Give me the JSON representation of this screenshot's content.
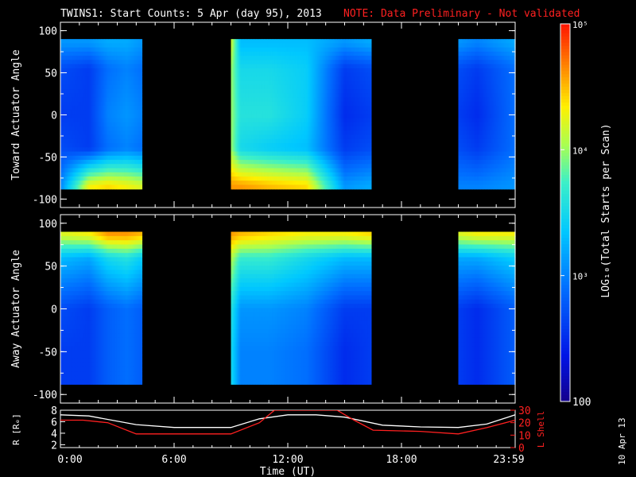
{
  "header": {
    "title": "TWINS1: Start Counts:  5 Apr (day  95), 2013",
    "note": "NOTE: Data Preliminary - Not validated"
  },
  "footer": {
    "date_stamp": "10 Apr 13"
  },
  "colors": {
    "background": "#000000",
    "axis": "#ffffff",
    "note": "#ff2020",
    "r_line": "#ffffff",
    "l_line": "#ff2020"
  },
  "chart_data": [
    {
      "type": "heatmap",
      "name": "toward",
      "ylabel": "Toward Actuator Angle",
      "xlim": [
        0,
        24
      ],
      "ylim": [
        -110,
        110
      ],
      "yticks": [
        100,
        50,
        0,
        -50,
        -100
      ],
      "data_ylim": [
        -88,
        90
      ],
      "coverage_hours": [
        [
          0,
          4.3
        ],
        [
          9.0,
          16.4
        ],
        [
          21.0,
          24
        ]
      ],
      "band_values_log10": {
        "hours": [
          0,
          1.5,
          2.5,
          3.5,
          4.3,
          9.0,
          9.5,
          11,
          13,
          15,
          16.4,
          21.0,
          22,
          24
        ],
        "north": [
          3.1,
          3.1,
          3.2,
          3.2,
          3.1,
          4.2,
          3.3,
          3.3,
          3.3,
          3.1,
          3.2,
          3.1,
          3.0,
          3.2
        ],
        "mid_north": [
          2.7,
          2.6,
          2.9,
          3.0,
          2.9,
          4.0,
          3.5,
          3.5,
          3.4,
          2.6,
          2.7,
          2.7,
          2.6,
          2.9
        ],
        "equator": [
          2.6,
          2.6,
          3.0,
          3.1,
          3.0,
          4.0,
          3.6,
          3.6,
          3.4,
          2.5,
          2.6,
          2.6,
          2.5,
          2.9
        ],
        "mid_south": [
          2.7,
          2.6,
          2.9,
          3.0,
          2.9,
          4.0,
          3.5,
          3.4,
          3.3,
          2.6,
          2.7,
          2.7,
          2.6,
          2.9
        ],
        "south_edge": [
          3.0,
          4.3,
          4.4,
          4.3,
          4.2,
          4.6,
          4.6,
          4.5,
          4.4,
          3.1,
          3.2,
          3.0,
          3.0,
          3.1
        ]
      }
    },
    {
      "type": "heatmap",
      "name": "away",
      "ylabel": "Away Actuator Angle",
      "xlim": [
        0,
        24
      ],
      "ylim": [
        -110,
        110
      ],
      "yticks": [
        100,
        50,
        0,
        -50,
        -100
      ],
      "data_ylim": [
        -88,
        90
      ],
      "coverage_hours": [
        [
          0,
          4.3
        ],
        [
          9.0,
          16.4
        ],
        [
          21.0,
          24
        ]
      ],
      "band_values_log10": {
        "hours": [
          0,
          1.5,
          2.5,
          3.5,
          4.3,
          9.0,
          9.5,
          11,
          13,
          15,
          16.4,
          21.0,
          22,
          24
        ],
        "north_edge": [
          4.2,
          4.3,
          4.6,
          4.6,
          4.5,
          4.6,
          4.5,
          4.4,
          4.3,
          4.3,
          4.4,
          4.2,
          4.3,
          4.3
        ],
        "north": [
          3.3,
          3.2,
          3.5,
          3.6,
          3.4,
          4.1,
          3.7,
          3.7,
          3.5,
          3.3,
          3.3,
          3.2,
          3.2,
          3.4
        ],
        "equator": [
          2.7,
          2.6,
          2.8,
          2.9,
          2.8,
          3.6,
          3.1,
          3.1,
          3.0,
          2.6,
          2.6,
          2.6,
          2.5,
          2.8
        ],
        "south": [
          2.6,
          2.6,
          2.8,
          2.9,
          2.8,
          3.5,
          3.0,
          3.0,
          2.9,
          2.5,
          2.6,
          2.6,
          2.5,
          2.8
        ]
      }
    },
    {
      "type": "line",
      "name": "orbit",
      "ylabel": "R [Rₑ]",
      "y2label": "L Shell",
      "xlabel": "Time (UT)",
      "xlim": [
        0,
        24
      ],
      "xticks": [
        "0:00",
        "6:00",
        "12:00",
        "18:00",
        "23:59"
      ],
      "ylim": [
        1.5,
        8
      ],
      "yticks": [
        8,
        6,
        4,
        2
      ],
      "y2lim": [
        0,
        30
      ],
      "y2ticks": [
        30,
        20,
        10,
        0
      ],
      "series": [
        {
          "axis": "left",
          "x": [
            0,
            1.5,
            4,
            6,
            9,
            10.5,
            12,
            13.5,
            15,
            17,
            19,
            21,
            22.5,
            24
          ],
          "values": [
            7.2,
            7.0,
            5.5,
            5.0,
            5.0,
            6.5,
            7.2,
            7.2,
            6.8,
            5.4,
            5.1,
            5.0,
            5.6,
            7.2
          ]
        },
        {
          "axis": "right",
          "x": [
            0,
            1.2,
            2.5,
            4,
            6,
            9,
            10.5,
            11.3,
            14.6,
            15.5,
            16.5,
            19,
            21,
            22.5,
            24
          ],
          "values": [
            22,
            22,
            20,
            11,
            11,
            11,
            20,
            30,
            30,
            22,
            14,
            13,
            11,
            16,
            22
          ]
        }
      ]
    }
  ],
  "colorbar": {
    "label": "LOG₁₀(Total Starts per Scan)",
    "tick_labels": [
      "10⁵",
      "10⁴",
      "10³",
      "100"
    ],
    "tick_log_values": [
      5,
      4,
      3,
      2
    ],
    "range_log10": [
      2,
      5
    ]
  }
}
